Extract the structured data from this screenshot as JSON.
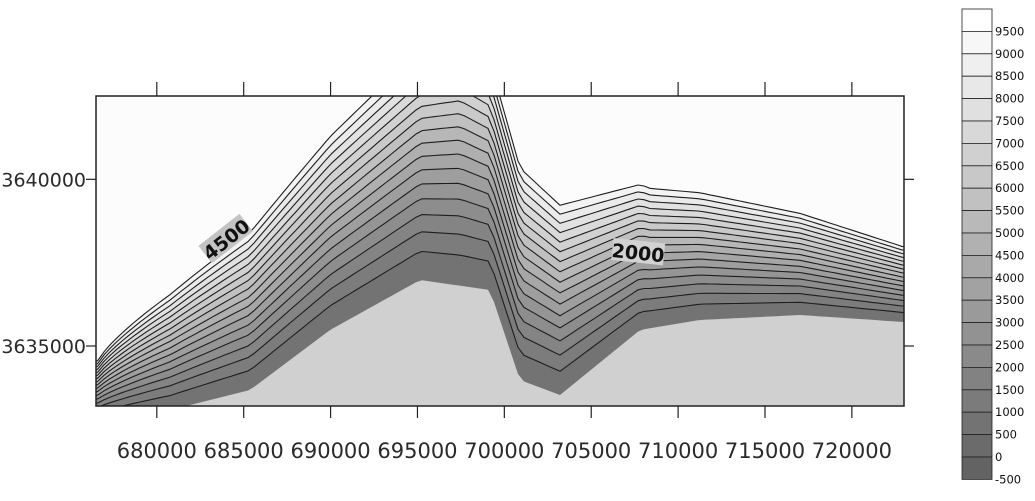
{
  "chart_data": {
    "type": "heatmap",
    "subtype": "filled-contour",
    "title": "",
    "xlabel": "",
    "ylabel": "",
    "xlim": [
      676500,
      723000
    ],
    "ylim": [
      3633200,
      3642500
    ],
    "x_ticks": [
      680000,
      685000,
      690000,
      695000,
      700000,
      705000,
      710000,
      715000,
      720000
    ],
    "x_tick_labels": [
      "680000",
      "685000",
      "690000",
      "695000",
      "700000",
      "705000",
      "710000",
      "715000",
      "720000"
    ],
    "y_ticks": [
      3635000,
      3640000
    ],
    "y_tick_labels": [
      "3635000",
      "3640000"
    ],
    "grid": false,
    "contour_interval": 500,
    "contour_labels": [
      {
        "text": "4500",
        "x": 684000,
        "y": 3638200
      },
      {
        "text": "2000",
        "x": 707700,
        "y": 3637800
      }
    ],
    "colorbar": {
      "placement": "right",
      "levels": [
        -500,
        0,
        500,
        1000,
        1500,
        2000,
        2500,
        3000,
        3500,
        4000,
        4500,
        5000,
        5500,
        6000,
        6500,
        7000,
        7500,
        8000,
        8500,
        9000,
        9500
      ],
      "labels": [
        "-500",
        "0",
        "500",
        "1000",
        "1500",
        "2000",
        "2500",
        "3000",
        "3500",
        "4000",
        "4500",
        "5000",
        "5500",
        "6000",
        "6500",
        "7000",
        "7500",
        "8000",
        "8500",
        "9000",
        "9500"
      ],
      "low_color": "#606060",
      "high_color": "#ffffff"
    }
  }
}
